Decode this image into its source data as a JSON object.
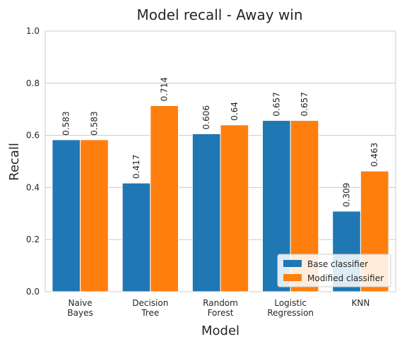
{
  "chart_data": {
    "type": "bar",
    "title": "Model recall - Away win",
    "xlabel": "Model",
    "ylabel": "Recall",
    "categories": [
      [
        "Naive",
        "Bayes"
      ],
      [
        "Decision",
        "Tree"
      ],
      [
        "Random",
        "Forest"
      ],
      [
        "Logistic",
        "Regression"
      ],
      [
        "KNN"
      ]
    ],
    "series": [
      {
        "name": "Base classifier",
        "color": "#1f77b4",
        "values": [
          0.583,
          0.417,
          0.606,
          0.657,
          0.309
        ],
        "labels": [
          "0.583",
          "0.417",
          "0.606",
          "0.657",
          "0.309"
        ]
      },
      {
        "name": "Modified classifier",
        "color": "#ff7f0e",
        "values": [
          0.583,
          0.714,
          0.64,
          0.657,
          0.463
        ],
        "labels": [
          "0.583",
          "0.714",
          "0.64",
          "0.657",
          "0.463"
        ]
      }
    ],
    "ylim": [
      0,
      1.0
    ],
    "yticks": [
      "0.0",
      "0.2",
      "0.4",
      "0.6",
      "0.8",
      "1.0"
    ],
    "grid": true,
    "legend_position": "lower-right"
  }
}
